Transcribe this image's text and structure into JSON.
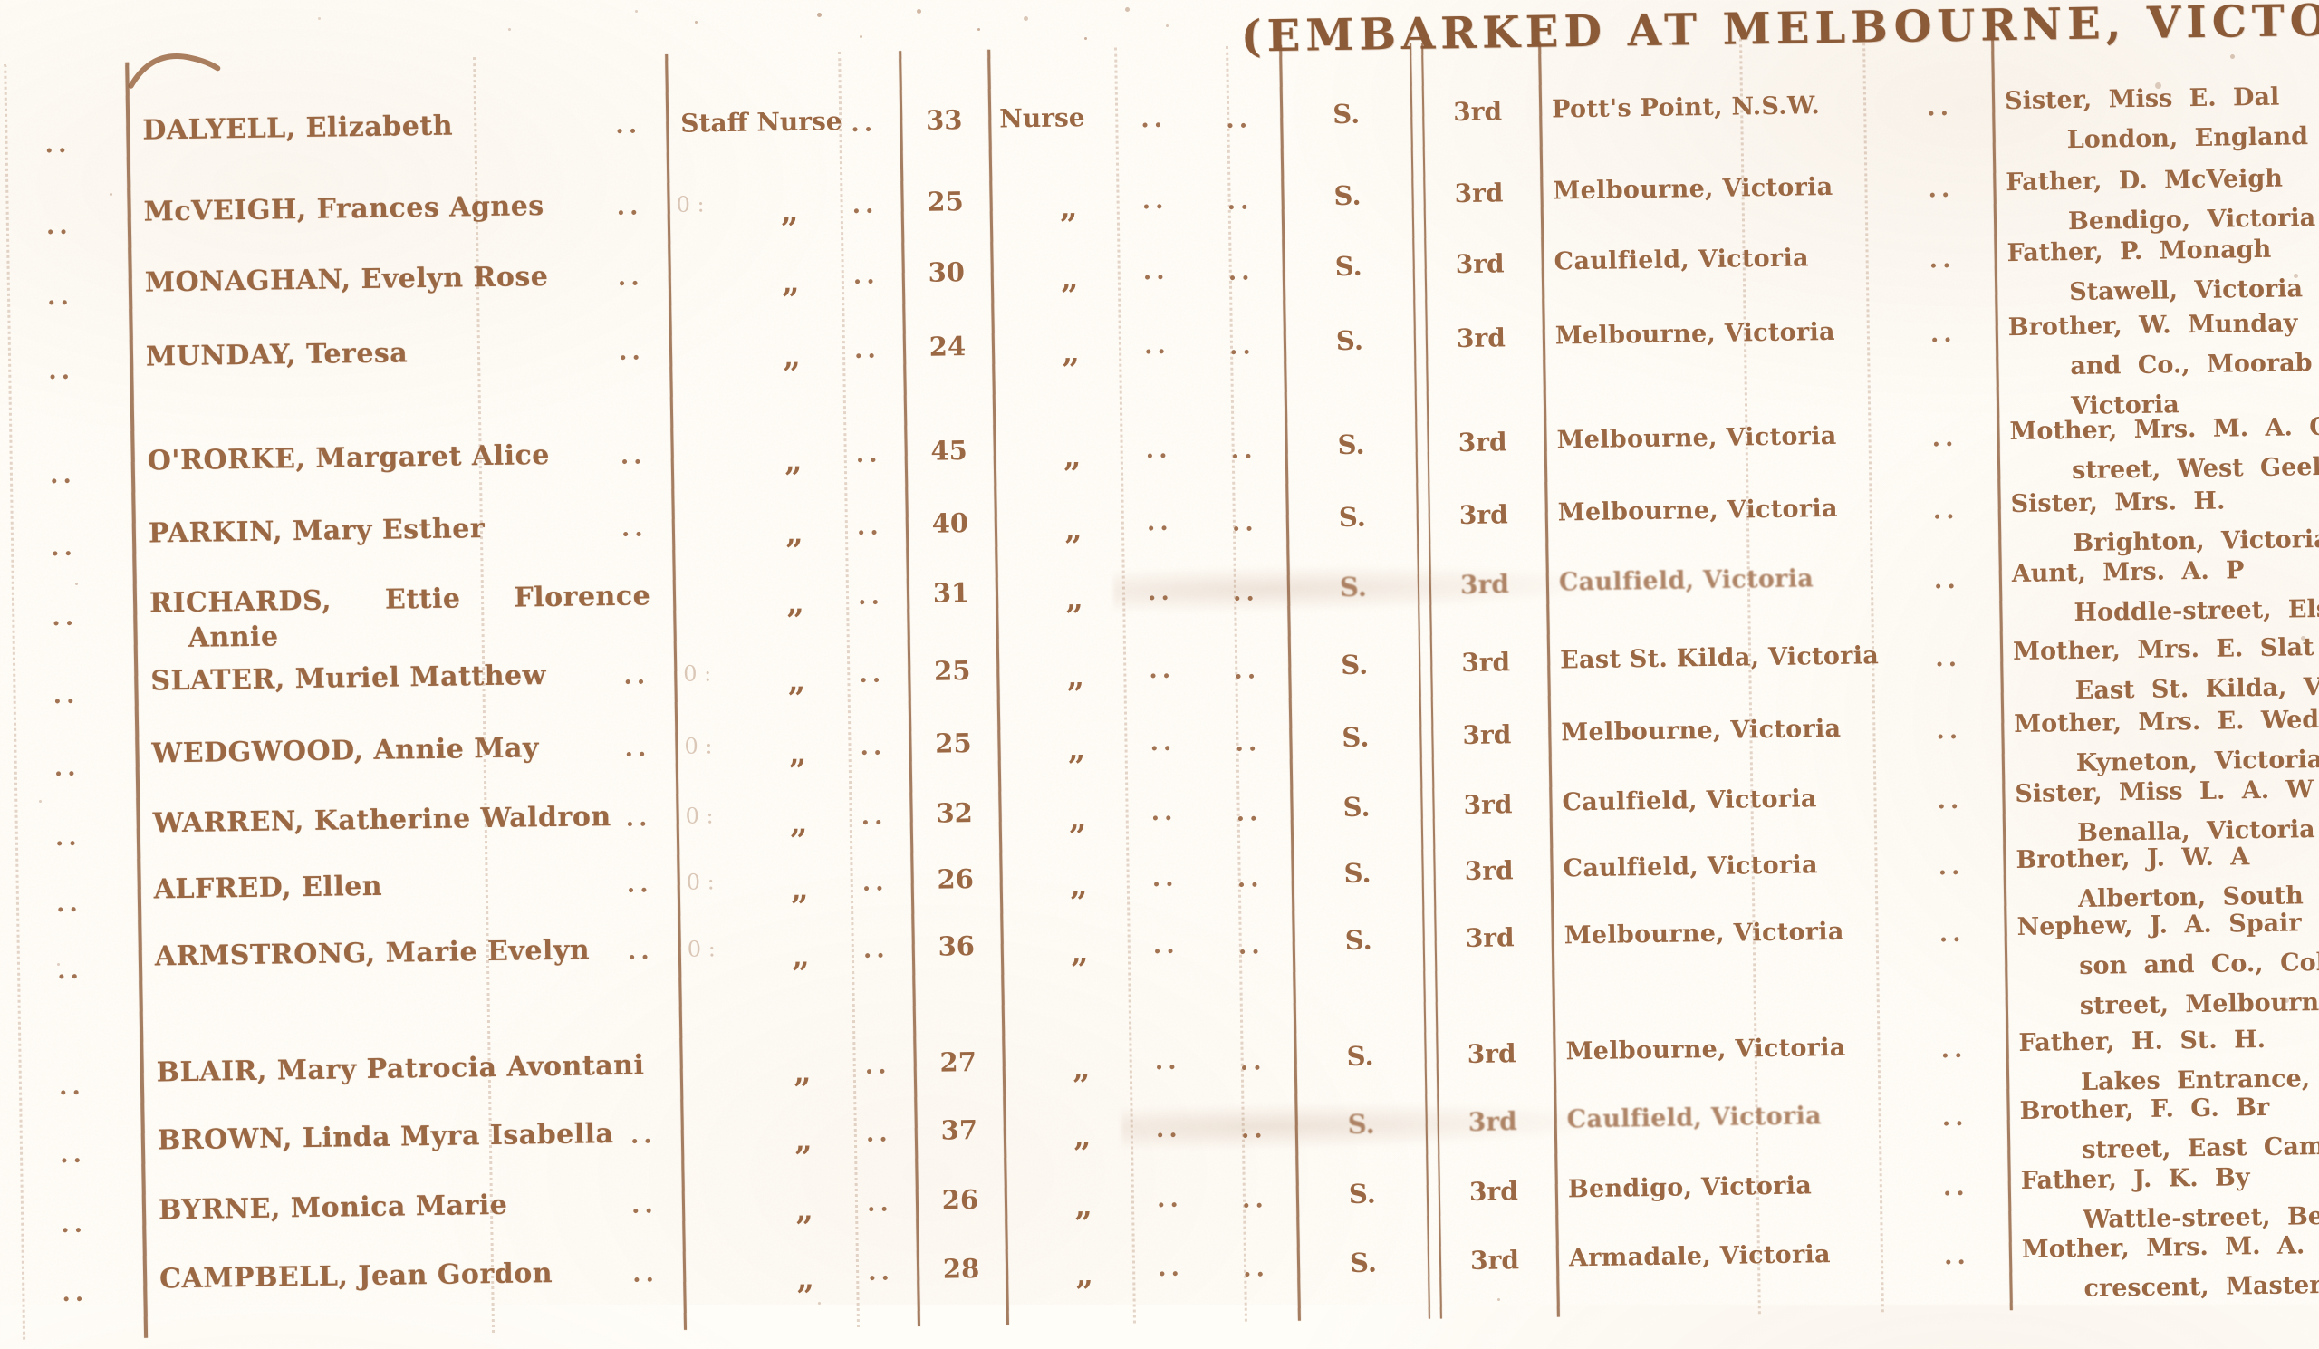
{
  "page": {
    "header_title": "(EMBARKED AT MELBOURNE, VICTORIA,",
    "ink_color": "#9a6743",
    "paper_color": "#fffdf8",
    "ditto_mark": "„"
  },
  "table": {
    "rows": [
      {
        "leader": "..",
        "name": "DALYELL, Elizabeth",
        "name_line2": "",
        "name_dots": "..",
        "rank": "Staff Nurse",
        "rank_dots": "..",
        "age": "33",
        "occupation": "Nurse",
        "occupation_dots": "..",
        "gap_dots": "..",
        "status": "S.",
        "class": "3rd",
        "residence": "Pott's Point, N.S.W.",
        "residence_dots": "..",
        "kin_lines": [
          "Sister, Miss E. Dal",
          "London, England"
        ]
      },
      {
        "leader": "..",
        "name": "McVEIGH, Frances Agnes",
        "name_line2": "",
        "name_dots": "..",
        "rank": "„",
        "rank_dots": "..",
        "age": "25",
        "occupation": "„",
        "occupation_dots": "..",
        "gap_dots": "..",
        "status": "S.",
        "class": "3rd",
        "residence": "Melbourne, Victoria",
        "residence_dots": "..",
        "kin_lines": [
          "Father, D. McVeigh",
          "Bendigo, Victoria"
        ]
      },
      {
        "leader": "..",
        "name": "MONAGHAN, Evelyn Rose",
        "name_line2": "",
        "name_dots": "..",
        "rank": "„",
        "rank_dots": "..",
        "age": "30",
        "occupation": "„",
        "occupation_dots": "..",
        "gap_dots": "..",
        "status": "S.",
        "class": "3rd",
        "residence": "Caulfield, Victoria",
        "residence_dots": "..",
        "kin_lines": [
          "Father, P. Monagh",
          "Stawell, Victoria"
        ]
      },
      {
        "leader": "..",
        "name": "MUNDAY, Teresa",
        "name_line2": "",
        "name_dots": "..",
        "rank": "„",
        "rank_dots": "..",
        "age": "24",
        "occupation": "„",
        "occupation_dots": "..",
        "gap_dots": "..",
        "status": "S.",
        "class": "3rd",
        "residence": "Melbourne, Victoria",
        "residence_dots": "..",
        "kin_lines": [
          "Brother, W. Munday",
          "and Co., Moorab",
          "Victoria"
        ]
      },
      {
        "leader": "..",
        "name": "O'RORKE, Margaret Alice",
        "name_line2": "",
        "name_dots": "..",
        "rank": "„",
        "rank_dots": "..",
        "age": "45",
        "occupation": "„",
        "occupation_dots": "..",
        "gap_dots": "..",
        "status": "S.",
        "class": "3rd",
        "residence": "Melbourne, Victoria",
        "residence_dots": "..",
        "kin_lines": [
          "Mother, Mrs. M. A. O",
          "street, West Geelo"
        ]
      },
      {
        "leader": "..",
        "name": "PARKIN, Mary Esther",
        "name_line2": "",
        "name_dots": "..",
        "rank": "„",
        "rank_dots": "..",
        "age": "40",
        "occupation": "„",
        "occupation_dots": "..",
        "gap_dots": "..",
        "status": "S.",
        "class": "3rd",
        "residence": "Melbourne, Victoria",
        "residence_dots": "..",
        "kin_lines": [
          "Sister, Mrs. H.",
          "Brighton, Victoria"
        ]
      },
      {
        "leader": "..",
        "name": "RICHARDS, Ettie Florence",
        "name_line2": "Annie",
        "name_dots": "",
        "rank": "„",
        "rank_dots": "..",
        "age": "31",
        "occupation": "„",
        "occupation_dots": "..",
        "gap_dots": "..",
        "status": "S.",
        "class": "3rd",
        "residence": "Caulfield, Victoria",
        "residence_dots": "..",
        "kin_lines": [
          "Aunt, Mrs. A. P",
          "Hoddle-street, Els"
        ]
      },
      {
        "leader": "..",
        "name": "SLATER, Muriel Matthew",
        "name_line2": "",
        "name_dots": "..",
        "rank": "„",
        "rank_dots": "..",
        "age": "25",
        "occupation": "„",
        "occupation_dots": "..",
        "gap_dots": "..",
        "status": "S.",
        "class": "3rd",
        "residence": "East St. Kilda, Victoria",
        "residence_dots": "..",
        "kin_lines": [
          "Mother, Mrs. E. Slat",
          "East St. Kilda, V"
        ]
      },
      {
        "leader": "..",
        "name": "WEDGWOOD, Annie May",
        "name_line2": "",
        "name_dots": "..",
        "rank": "„",
        "rank_dots": "..",
        "age": "25",
        "occupation": "„",
        "occupation_dots": "..",
        "gap_dots": "..",
        "status": "S.",
        "class": "3rd",
        "residence": "Melbourne, Victoria",
        "residence_dots": "..",
        "kin_lines": [
          "Mother, Mrs. E. Wed",
          "Kyneton, Victoria"
        ]
      },
      {
        "leader": "..",
        "name": "WARREN, Katherine Waldron",
        "name_line2": "",
        "name_dots": "..",
        "rank": "„",
        "rank_dots": "..",
        "age": "32",
        "occupation": "„",
        "occupation_dots": "..",
        "gap_dots": "..",
        "status": "S.",
        "class": "3rd",
        "residence": "Caulfield, Victoria",
        "residence_dots": "..",
        "kin_lines": [
          "Sister, Miss L. A. W",
          "Benalla, Victoria"
        ]
      },
      {
        "leader": "..",
        "name": "ALFRED, Ellen",
        "name_line2": "",
        "name_dots": "..",
        "rank": "„",
        "rank_dots": "..",
        "age": "26",
        "occupation": "„",
        "occupation_dots": "..",
        "gap_dots": "..",
        "status": "S.",
        "class": "3rd",
        "residence": "Caulfield, Victoria",
        "residence_dots": "..",
        "kin_lines": [
          "Brother, J. W. A",
          "Alberton, South A"
        ]
      },
      {
        "leader": "..",
        "name": "ARMSTRONG, Marie Evelyn",
        "name_line2": "",
        "name_dots": "..",
        "rank": "„",
        "rank_dots": "..",
        "age": "36",
        "occupation": "„",
        "occupation_dots": "..",
        "gap_dots": "..",
        "status": "S.",
        "class": "3rd",
        "residence": "Melbourne, Victoria",
        "residence_dots": "..",
        "kin_lines": [
          "Nephew, J. A. Spair",
          "son and Co., Col",
          "street, Melbourne,"
        ]
      },
      {
        "leader": "..",
        "name": "BLAIR, Mary Patrocia Avontani",
        "name_line2": "",
        "name_dots": "",
        "rank": "„",
        "rank_dots": "..",
        "age": "27",
        "occupation": "„",
        "occupation_dots": "..",
        "gap_dots": "..",
        "status": "S.",
        "class": "3rd",
        "residence": "Melbourne, Victoria",
        "residence_dots": "..",
        "kin_lines": [
          "Father, H. St. H.",
          "Lakes Entrance, G"
        ]
      },
      {
        "leader": "..",
        "name": "BROWN, Linda Myra Isabella",
        "name_line2": "",
        "name_dots": "..",
        "rank": "„",
        "rank_dots": "..",
        "age": "37",
        "occupation": "„",
        "occupation_dots": "..",
        "gap_dots": "..",
        "status": "S.",
        "class": "3rd",
        "residence": "Caulfield, Victoria",
        "residence_dots": "..",
        "kin_lines": [
          "Brother, F. G. Br",
          "street, East Camb"
        ]
      },
      {
        "leader": "..",
        "name": "BYRNE, Monica Marie",
        "name_line2": "",
        "name_dots": "..",
        "rank": "„",
        "rank_dots": "..",
        "age": "26",
        "occupation": "„",
        "occupation_dots": "..",
        "gap_dots": "..",
        "status": "S.",
        "class": "3rd",
        "residence": "Bendigo, Victoria",
        "residence_dots": "..",
        "kin_lines": [
          "Father, J. K. By",
          "Wattle-street, Ben"
        ]
      },
      {
        "leader": "..",
        "name": "CAMPBELL, Jean Gordon",
        "name_line2": "",
        "name_dots": "..",
        "rank": "„",
        "rank_dots": "..",
        "age": "28",
        "occupation": "„",
        "occupation_dots": "..",
        "gap_dots": "..",
        "status": "S.",
        "class": "3rd",
        "residence": "Armadale, Victoria",
        "residence_dots": "..",
        "kin_lines": [
          "Mother, Mrs. M. A.",
          "crescent, Masterto"
        ]
      }
    ]
  }
}
